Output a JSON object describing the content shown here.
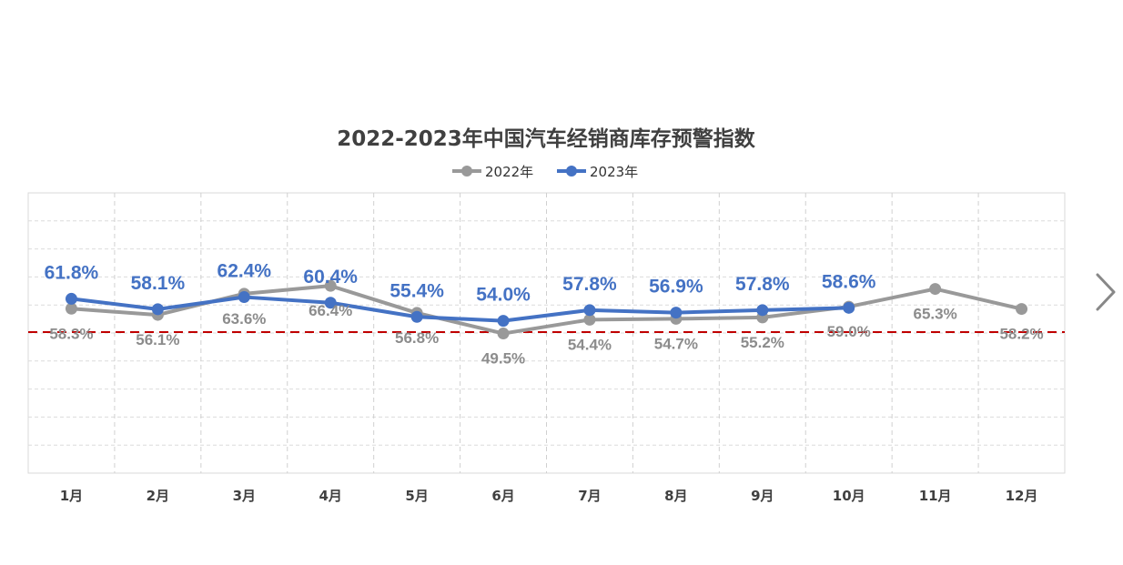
{
  "chart_data": {
    "type": "line",
    "title": "2022-2023年中国汽车经销商库存预警指数",
    "categories": [
      "1月",
      "2月",
      "3月",
      "4月",
      "5月",
      "6月",
      "7月",
      "8月",
      "9月",
      "10月",
      "11月",
      "12月"
    ],
    "series": [
      {
        "name": "2022年",
        "color": "#999999",
        "values": [
          58.3,
          56.1,
          63.6,
          66.4,
          56.8,
          49.5,
          54.4,
          54.7,
          55.2,
          59.0,
          65.3,
          58.2
        ],
        "labels": [
          "58.3%",
          "56.1%",
          "63.6%",
          "66.4%",
          "56.8%",
          "49.5%",
          "54.4%",
          "54.7%",
          "55.2%",
          "59.0%",
          "65.3%",
          "58.2%"
        ]
      },
      {
        "name": "2023年",
        "color": "#4472C4",
        "values": [
          61.8,
          58.1,
          62.4,
          60.4,
          55.4,
          54.0,
          57.8,
          56.9,
          57.8,
          58.6,
          null,
          null
        ],
        "labels": [
          "61.8%",
          "58.1%",
          "62.4%",
          "60.4%",
          "55.4%",
          "54.0%",
          "57.8%",
          "56.9%",
          "57.8%",
          "58.6%",
          null,
          null
        ]
      }
    ],
    "reference_line": {
      "value": 50,
      "color": "#C00000",
      "style": "dashed"
    },
    "ylim": [
      0,
      100
    ],
    "grid": true,
    "legend_position": "top-center"
  },
  "nav": {
    "next_icon": "chevron-right-icon"
  }
}
